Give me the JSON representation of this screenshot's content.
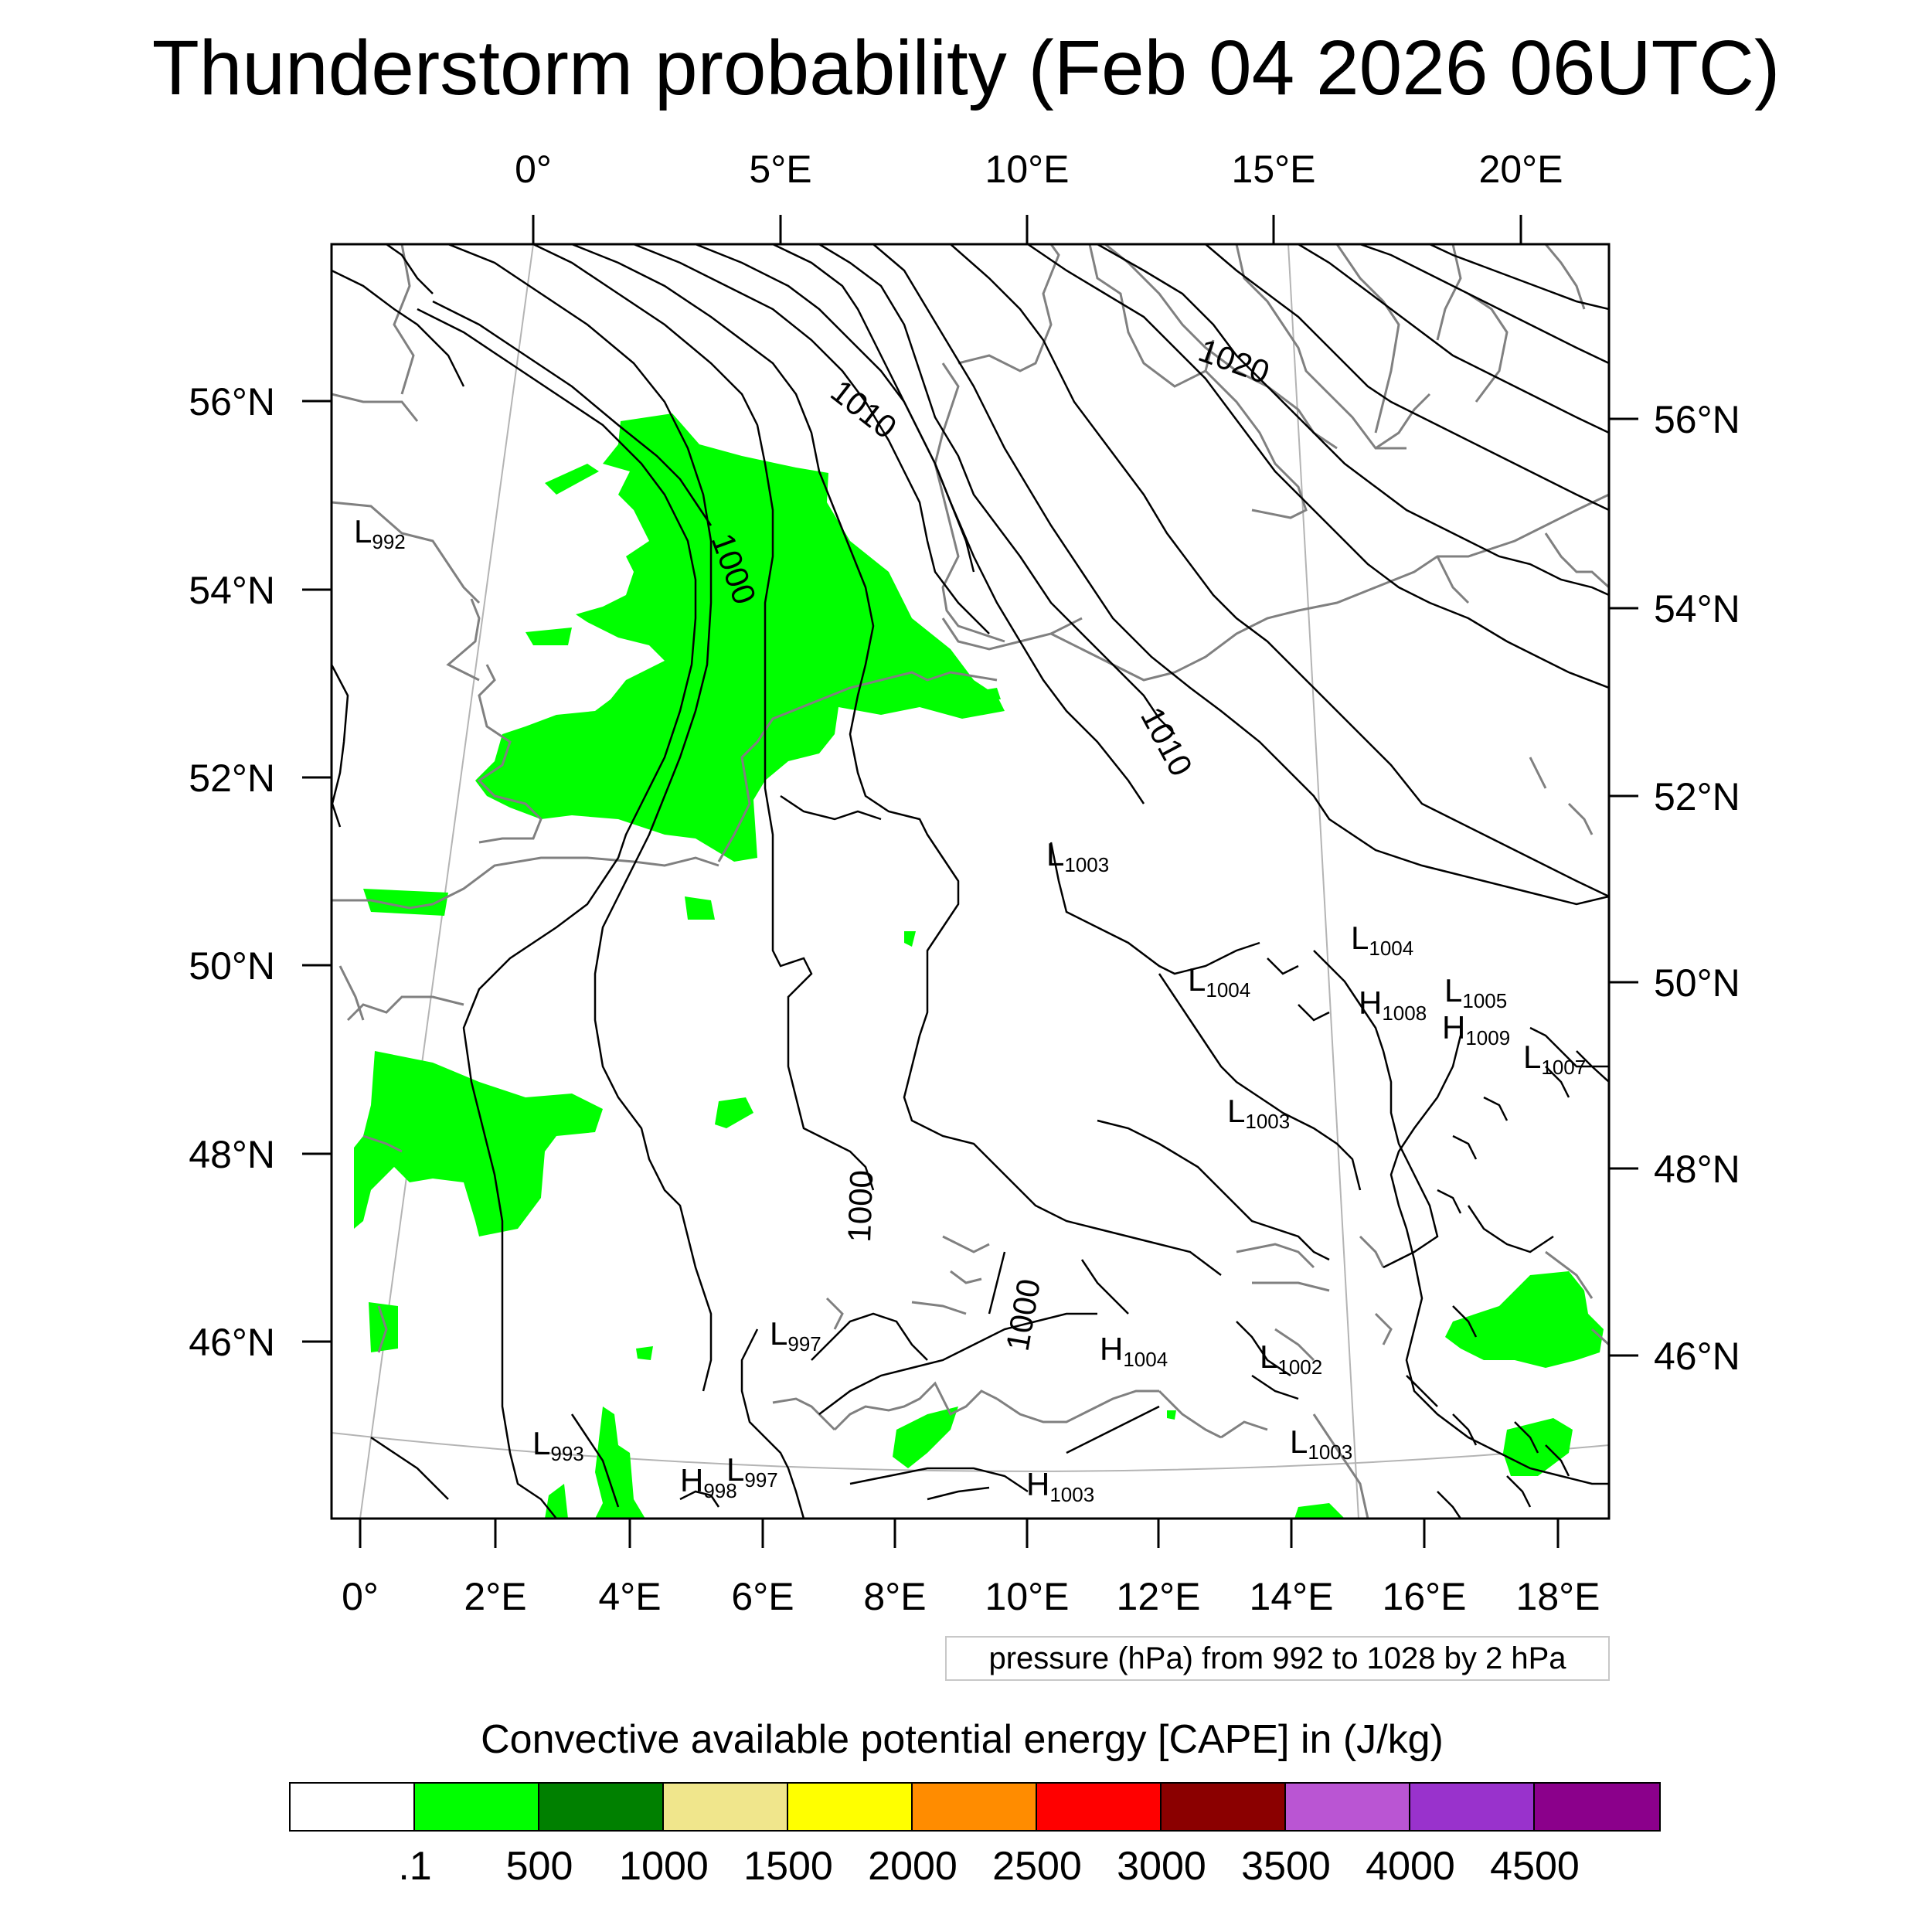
{
  "title": "Thunderstorm probability (Feb 04 2026 06UTC)",
  "axes": {
    "top_lon": [
      "0°",
      "5°E",
      "10°E",
      "15°E",
      "20°E"
    ],
    "bottom_lon": [
      "0°",
      "2°E",
      "4°E",
      "6°E",
      "8°E",
      "10°E",
      "12°E",
      "14°E",
      "16°E",
      "18°E"
    ],
    "left_lat": [
      "56°N",
      "54°N",
      "52°N",
      "50°N",
      "48°N",
      "46°N"
    ],
    "right_lat": [
      "56°N",
      "54°N",
      "52°N",
      "50°N",
      "48°N",
      "46°N"
    ]
  },
  "isobar_labels": [
    "1020",
    "1010",
    "1010",
    "1000",
    "1000",
    "1000"
  ],
  "pressure_centers": [
    {
      "type": "L",
      "value": "992"
    },
    {
      "type": "L",
      "value": "1003"
    },
    {
      "type": "L",
      "value": "1004"
    },
    {
      "type": "L",
      "value": "1004"
    },
    {
      "type": "H",
      "value": "1008"
    },
    {
      "type": "L",
      "value": "1005"
    },
    {
      "type": "H",
      "value": "1009"
    },
    {
      "type": "L",
      "value": "1007"
    },
    {
      "type": "L",
      "value": "1003"
    },
    {
      "type": "L",
      "value": "997"
    },
    {
      "type": "H",
      "value": "1004"
    },
    {
      "type": "L",
      "value": "1002"
    },
    {
      "type": "L",
      "value": "1003"
    },
    {
      "type": "L",
      "value": "993"
    },
    {
      "type": "H",
      "value": "998"
    },
    {
      "type": "L",
      "value": "997"
    },
    {
      "type": "H",
      "value": "1003"
    }
  ],
  "contour_note": "pressure (hPa) from 992 to 1028 by 2 hPa",
  "colorbar": {
    "title": "Convective available potential energy [CAPE] in (J/kg)",
    "labels": [
      ".1",
      "500",
      "1000",
      "1500",
      "2000",
      "2500",
      "3000",
      "3500",
      "4000",
      "4500"
    ],
    "colors": [
      "#ffffff",
      "#00ff00",
      "#008000",
      "#f0e68c",
      "#ffff00",
      "#ff8c00",
      "#ff0000",
      "#8b0000",
      "#ba55d3",
      "#9932cc",
      "#8b008b"
    ]
  },
  "colors": {
    "cape_area": "#00ff00",
    "coastline": "#808080",
    "isobar": "#000000",
    "graticule": "#b4b4b4"
  }
}
